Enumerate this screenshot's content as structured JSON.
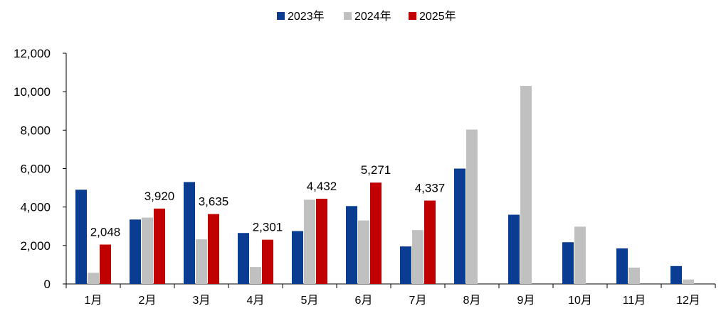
{
  "chart_data": {
    "type": "bar",
    "categories": [
      "1月",
      "2月",
      "3月",
      "4月",
      "5月",
      "6月",
      "7月",
      "8月",
      "9月",
      "10月",
      "11月",
      "12月"
    ],
    "series": [
      {
        "name": "2023年",
        "color": "#0A3D91",
        "values": [
          4900,
          3350,
          5300,
          2650,
          2750,
          4050,
          1950,
          6000,
          3600,
          2170,
          1850,
          930
        ]
      },
      {
        "name": "2024年",
        "color": "#C0C0C0",
        "values": [
          580,
          3450,
          2320,
          880,
          4380,
          3300,
          2800,
          8030,
          10300,
          2980,
          850,
          230
        ]
      },
      {
        "name": "2025年",
        "color": "#C00000",
        "values": [
          2048,
          3920,
          3635,
          2301,
          4432,
          5271,
          4337,
          null,
          null,
          null,
          null,
          null
        ],
        "labels": [
          "2,048",
          "3,920",
          "3,635",
          "2,301",
          "4,432",
          "5,271",
          "4,337",
          "",
          "",
          "",
          "",
          ""
        ]
      }
    ],
    "ylim": [
      0,
      12000
    ],
    "yticks": [
      0,
      2000,
      4000,
      6000,
      8000,
      10000,
      12000
    ],
    "ytick_labels": [
      "0",
      "2,000",
      "4,000",
      "6,000",
      "8,000",
      "10,000",
      "12,000"
    ],
    "title": "",
    "xlabel": "",
    "ylabel": "",
    "grid": false,
    "legend_position": "top-center"
  }
}
